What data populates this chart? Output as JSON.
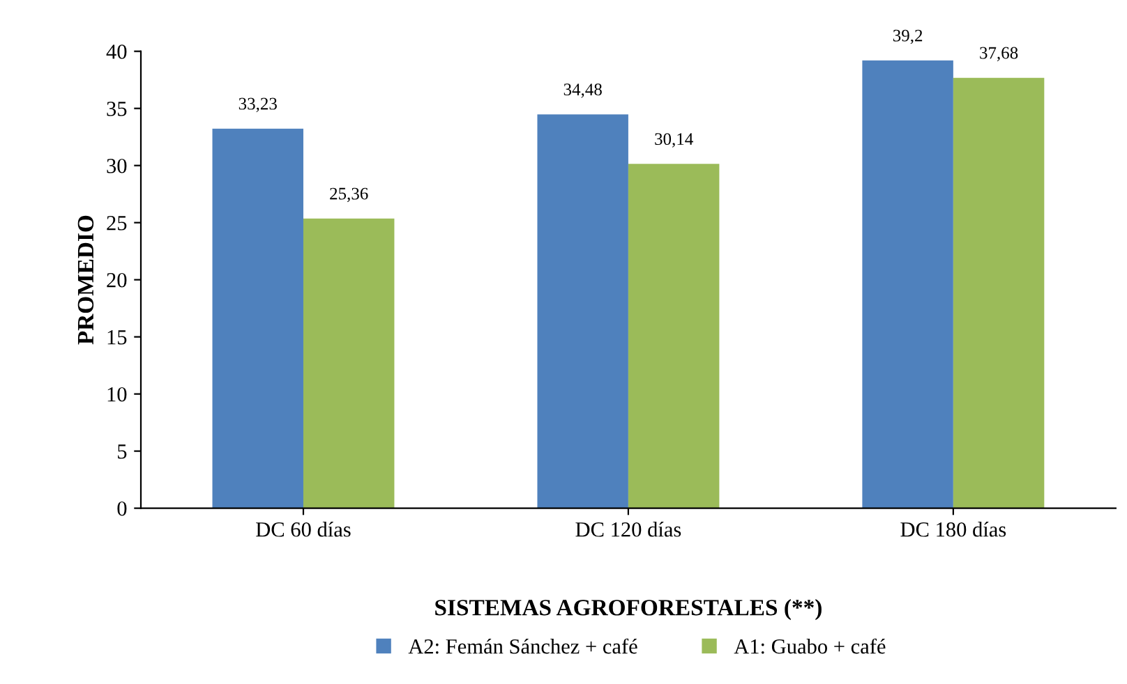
{
  "chart_data": {
    "type": "bar",
    "xlabel": "SISTEMAS AGROFORESTALES (**)",
    "ylabel": "PROMEDIO",
    "categories": [
      "DC 60 días",
      "DC 120 días",
      "DC 180 días"
    ],
    "series": [
      {
        "name": "A2: Femán Sánchez + café",
        "color": "#4f81bd",
        "values": [
          33.23,
          34.48,
          39.2
        ],
        "value_labels": [
          "33,23",
          "34,48",
          "39,2"
        ]
      },
      {
        "name": "A1: Guabo + café",
        "color": "#9bbb59",
        "values": [
          25.36,
          30.14,
          37.68
        ],
        "value_labels": [
          "25,36",
          "30,14",
          "37,68"
        ]
      }
    ],
    "ylim": [
      0,
      40
    ],
    "yticks": [
      0,
      5,
      10,
      15,
      20,
      25,
      30,
      35,
      40
    ],
    "grid": false,
    "legend": "bottom"
  }
}
